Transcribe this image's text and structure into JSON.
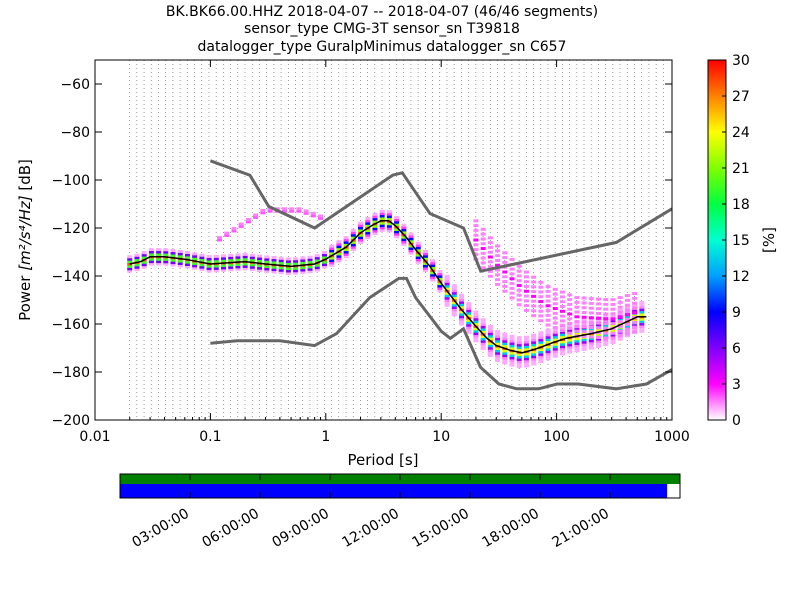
{
  "chart_data": {
    "type": "heatmap",
    "title_lines": [
      "BK.BK66.00.HHZ   2018-04-07 -- 2018-04-07  (46/46 segments)",
      "sensor_type CMG-3T sensor_sn T39818",
      "datalogger_type GuralpMinimus datalogger_sn C657"
    ],
    "xlabel": "Period [s]",
    "ylabel_text": "Power ",
    "ylabel_units": "[m²/s⁴/Hz]",
    "ylabel_suffix": " [dB]",
    "xscale": "log",
    "xlim": [
      0.01,
      1000
    ],
    "ylim": [
      -200,
      -50
    ],
    "x_ticks": [
      {
        "value": 0.01,
        "label": "0.01"
      },
      {
        "value": 0.1,
        "label": "0.1"
      },
      {
        "value": 1,
        "label": "1"
      },
      {
        "value": 10,
        "label": "10"
      },
      {
        "value": 100,
        "label": "100"
      },
      {
        "value": 1000,
        "label": "1000"
      }
    ],
    "y_ticks": [
      {
        "value": -60,
        "label": "−60"
      },
      {
        "value": -80,
        "label": "−80"
      },
      {
        "value": -100,
        "label": "−100"
      },
      {
        "value": -120,
        "label": "−120"
      },
      {
        "value": -140,
        "label": "−140"
      },
      {
        "value": -160,
        "label": "−160"
      },
      {
        "value": -180,
        "label": "−180"
      },
      {
        "value": -200,
        "label": "−200"
      }
    ],
    "grid": "dotted vertical at PSD periods",
    "noise_models": [
      {
        "name": "high",
        "points": [
          [
            0.1,
            -92
          ],
          [
            0.22,
            -98
          ],
          [
            0.32,
            -111
          ],
          [
            0.8,
            -120
          ],
          [
            3.8,
            -98
          ],
          [
            4.6,
            -97
          ],
          [
            8,
            -114
          ],
          [
            15.6,
            -120
          ],
          [
            22,
            -138
          ],
          [
            330,
            -126
          ],
          [
            1000,
            -112
          ]
        ]
      },
      {
        "name": "low",
        "points": [
          [
            0.1,
            -168
          ],
          [
            0.17,
            -167
          ],
          [
            0.4,
            -167
          ],
          [
            0.8,
            -169
          ],
          [
            1.24,
            -164
          ],
          [
            2.4,
            -149
          ],
          [
            4.3,
            -141
          ],
          [
            5,
            -141
          ],
          [
            6,
            -149
          ],
          [
            10,
            -163
          ],
          [
            12,
            -166
          ],
          [
            15.6,
            -162
          ],
          [
            21.9,
            -178
          ],
          [
            31.6,
            -185
          ],
          [
            45,
            -187
          ],
          [
            70,
            -187
          ],
          [
            101,
            -185
          ],
          [
            154,
            -185
          ],
          [
            328,
            -187
          ],
          [
            600,
            -185
          ],
          [
            1000,
            -179
          ]
        ]
      }
    ],
    "mean_curve": [
      [
        0.02,
        -135
      ],
      [
        0.025,
        -134
      ],
      [
        0.03,
        -132
      ],
      [
        0.04,
        -132
      ],
      [
        0.06,
        -133
      ],
      [
        0.1,
        -135
      ],
      [
        0.2,
        -134
      ],
      [
        0.3,
        -135
      ],
      [
        0.5,
        -136
      ],
      [
        0.8,
        -135
      ],
      [
        1,
        -133
      ],
      [
        1.5,
        -128
      ],
      [
        2,
        -122
      ],
      [
        2.5,
        -119
      ],
      [
        3,
        -117
      ],
      [
        3.5,
        -117
      ],
      [
        4,
        -119
      ],
      [
        5,
        -124
      ],
      [
        6,
        -129
      ],
      [
        8,
        -136
      ],
      [
        10,
        -143
      ],
      [
        12,
        -148
      ],
      [
        15,
        -154
      ],
      [
        20,
        -161
      ],
      [
        25,
        -166
      ],
      [
        30,
        -169
      ],
      [
        40,
        -171
      ],
      [
        50,
        -172
      ],
      [
        60,
        -171
      ],
      [
        70,
        -170
      ],
      [
        90,
        -168
      ],
      [
        120,
        -166
      ],
      [
        200,
        -164
      ],
      [
        300,
        -162
      ],
      [
        500,
        -157
      ],
      [
        600,
        -157
      ]
    ],
    "secondary_branch": [
      [
        20,
        -125
      ],
      [
        30,
        -135
      ],
      [
        50,
        -145
      ],
      [
        80,
        -152
      ],
      [
        150,
        -157
      ],
      [
        300,
        -158
      ],
      [
        500,
        -155
      ]
    ],
    "colorbar": {
      "label": "[%]",
      "min": 0,
      "max": 30,
      "ticks": [
        {
          "value": 0,
          "label": "0"
        },
        {
          "value": 3,
          "label": "3"
        },
        {
          "value": 6,
          "label": "6"
        },
        {
          "value": 9,
          "label": "9"
        },
        {
          "value": 12,
          "label": "12"
        },
        {
          "value": 15,
          "label": "15"
        },
        {
          "value": 18,
          "label": "18"
        },
        {
          "value": 21,
          "label": "21"
        },
        {
          "value": 24,
          "label": "24"
        },
        {
          "value": 27,
          "label": "27"
        },
        {
          "value": 30,
          "label": "30"
        }
      ],
      "colors": [
        "#ffffff",
        "#ff00ff",
        "#8000ff",
        "#0000ff",
        "#00a0ff",
        "#00ffd0",
        "#00ff40",
        "#80ff00",
        "#ffff00",
        "#ff8000",
        "#ff0000"
      ]
    },
    "coverage": {
      "time_labels": [
        "03:00:00",
        "06:00:00",
        "09:00:00",
        "12:00:00",
        "15:00:00",
        "18:00:00",
        "21:00:00"
      ],
      "time_positions_hours": [
        3,
        6,
        9,
        12,
        15,
        18,
        21
      ],
      "total_hours": 24,
      "data_fraction": 1.0,
      "psd_fraction": 0.977,
      "data_color": "#008000",
      "psd_color": "#0000ff"
    }
  }
}
